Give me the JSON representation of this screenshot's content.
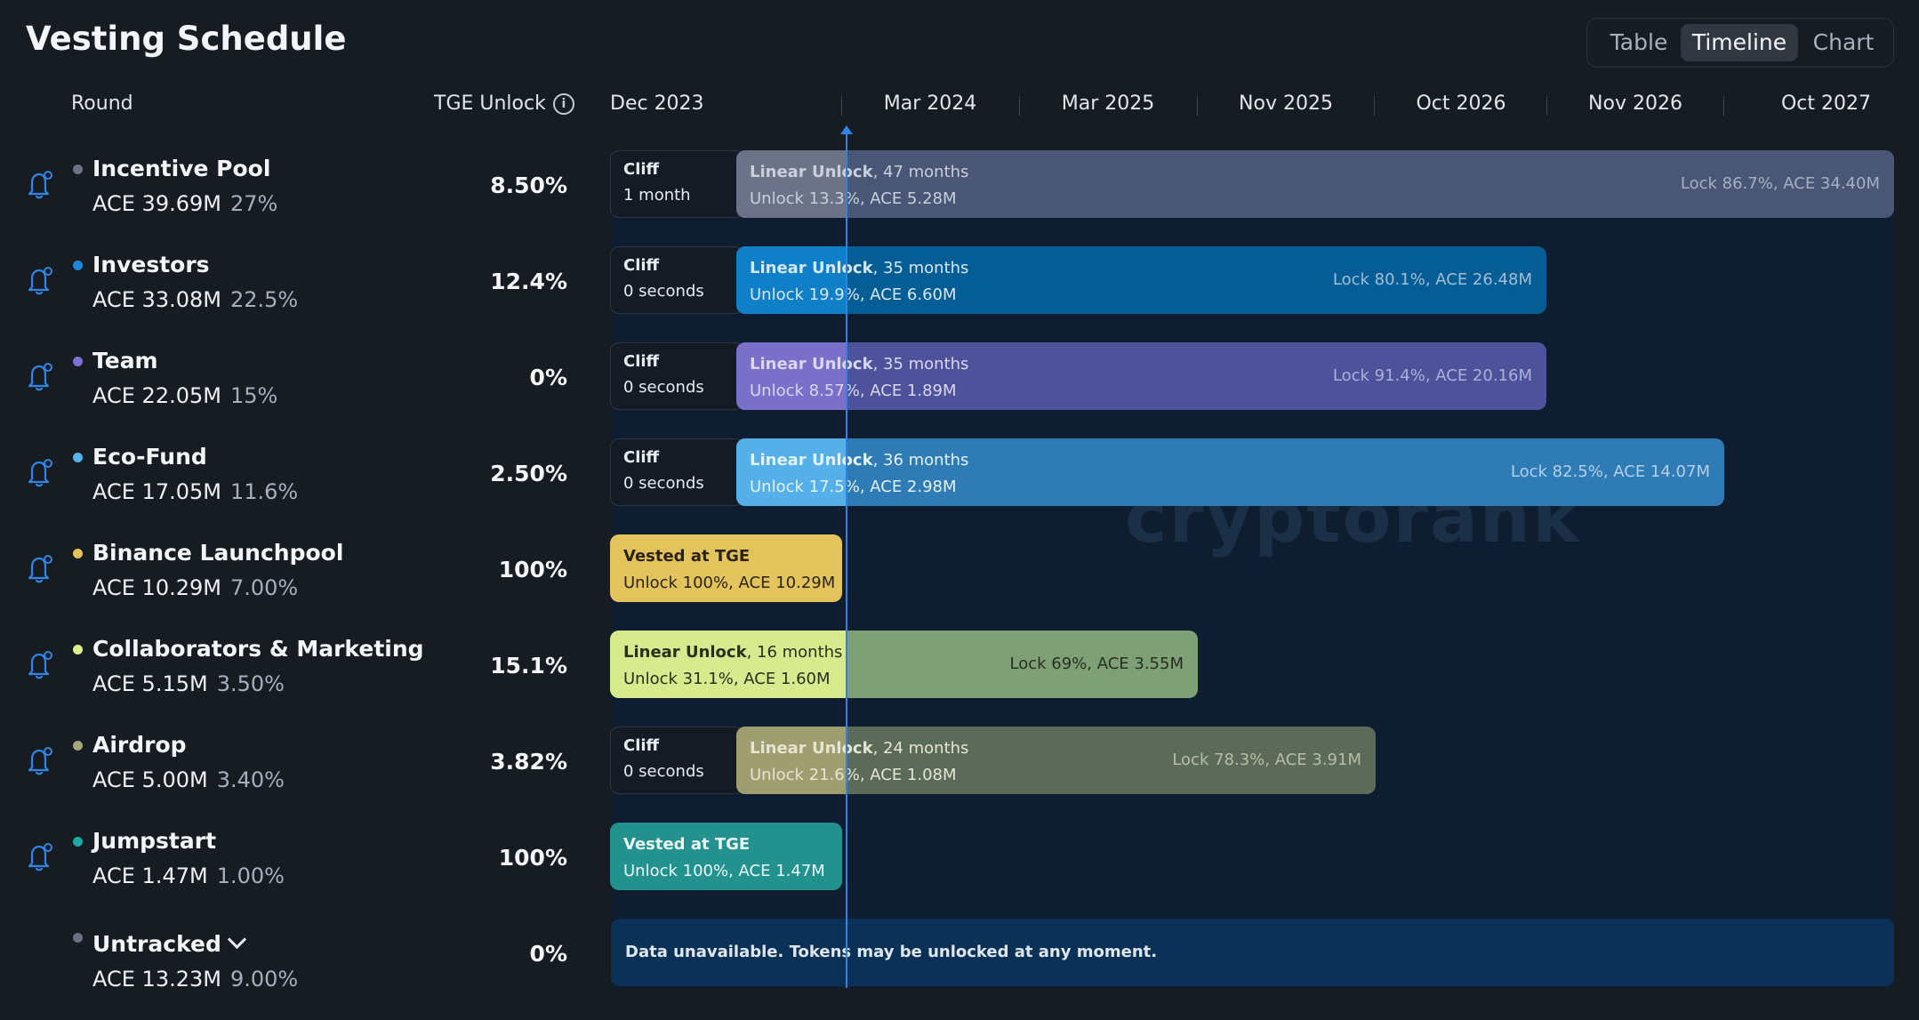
{
  "title": "Vesting Schedule",
  "tabs": [
    {
      "label": "Table",
      "active": false
    },
    {
      "label": "Timeline",
      "active": true
    },
    {
      "label": "Chart",
      "active": false
    }
  ],
  "headers": {
    "round": "Round",
    "tge": "TGE Unlock",
    "info_icon": "i"
  },
  "timeline_ticks": [
    "Dec 2023",
    "Mar 2024",
    "Mar 2025",
    "Nov 2025",
    "Oct 2026",
    "Nov 2026",
    "Oct 2027"
  ],
  "watermark": "cryptorank",
  "rows": [
    {
      "name": "Incentive Pool",
      "amount": "ACE 39.69M",
      "pct": "27%",
      "tge": "8.50%",
      "dot": "#6d7286",
      "cliff_title": "Cliff",
      "cliff_dur": "1 month",
      "linear_title": "Linear Unlock",
      "linear_dur": ", 47 months",
      "unlock_pct": "Unlock 13.3%",
      "unlock_amt": ", ACE 5.28M",
      "lock": "Lock 86.7%, ACE 34.40M",
      "bar_color": "#4a5675",
      "past_color": "#6c7387"
    },
    {
      "name": "Investors",
      "amount": "ACE 33.08M",
      "pct": "22.5%",
      "tge": "12.4%",
      "dot": "#1e88d7",
      "cliff_title": "Cliff",
      "cliff_dur": "0 seconds",
      "linear_title": "Linear Unlock",
      "linear_dur": ", 35 months",
      "unlock_pct": "Unlock 19.9%",
      "unlock_amt": ", ACE 6.60M",
      "lock": "Lock 80.1%, ACE 26.48M",
      "bar_color": "#055d96",
      "past_color": "#0f7fc8"
    },
    {
      "name": "Team",
      "amount": "ACE 22.05M",
      "pct": "15%",
      "tge": "0%",
      "dot": "#7e6fd3",
      "cliff_title": "Cliff",
      "cliff_dur": "0 seconds",
      "linear_title": "Linear Unlock",
      "linear_dur": ", 35 months",
      "unlock_pct": "Unlock 8.57%",
      "unlock_amt": ", ACE 1.89M",
      "lock": "Lock 91.4%, ACE 20.16M",
      "bar_color": "#4d529a",
      "past_color": "#7a6fc9"
    },
    {
      "name": "Eco-Fund",
      "amount": "ACE 17.05M",
      "pct": "11.6%",
      "tge": "2.50%",
      "dot": "#56b4ee",
      "cliff_title": "Cliff",
      "cliff_dur": "0 seconds",
      "linear_title": "Linear Unlock",
      "linear_dur": ", 36 months",
      "unlock_pct": "Unlock 17.5%",
      "unlock_amt": ", ACE 2.98M",
      "lock": "Lock 82.5%, ACE 14.07M",
      "bar_color": "#2f7bb5",
      "past_color": "#55b0ea"
    },
    {
      "name": "Binance Launchpool",
      "amount": "ACE 10.29M",
      "pct": "7.00%",
      "tge": "100%",
      "dot": "#e3c35a",
      "vested_title": "Vested at TGE",
      "vested_sub": "Unlock 100%, ACE 10.29M",
      "vested_color": "#e3c35b",
      "vested_text": "#2a2410"
    },
    {
      "name": "Collaborators & Marketing",
      "amount": "ACE 5.15M",
      "pct": "3.50%",
      "tge": "15.1%",
      "dot": "#dfee8c",
      "linear_title": "Linear Unlock",
      "linear_dur": ", 16 months",
      "unlock_pct": "Unlock 31.1%",
      "unlock_amt": ", ACE 1.60M",
      "lock": "Lock 69%, ACE 3.55M",
      "bar_color": "#7f9f77",
      "past_color": "#d8ea8e"
    },
    {
      "name": "Airdrop",
      "amount": "ACE 5.00M",
      "pct": "3.40%",
      "tge": "3.82%",
      "dot": "#a3a67a",
      "cliff_title": "Cliff",
      "cliff_dur": "0 seconds",
      "linear_title": "Linear Unlock",
      "linear_dur": ", 24 months",
      "unlock_pct": "Unlock 21.6%",
      "unlock_amt": ", ACE 1.08M",
      "lock": "Lock 78.3%, ACE 3.91M",
      "bar_color": "#5c6b59",
      "past_color": "#9e9e70"
    },
    {
      "name": "Jumpstart",
      "amount": "ACE 1.47M",
      "pct": "1.00%",
      "tge": "100%",
      "dot": "#1fa7a4",
      "vested_title": "Vested at TGE",
      "vested_sub": "Unlock 100%, ACE 1.47M",
      "vested_color": "#23928f",
      "vested_text": "#eafbfa"
    },
    {
      "name": "Untracked",
      "amount": "ACE 13.23M",
      "pct": "9.00%",
      "tge": "0%",
      "dot": "#6a6f82",
      "unavailable": "Data unavailable. Tokens may be unlocked at any moment."
    }
  ]
}
